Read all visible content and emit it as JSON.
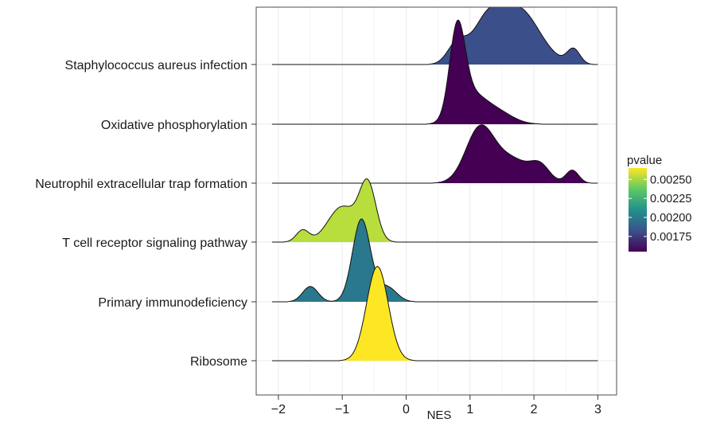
{
  "chart_data": {
    "type": "ridgeline",
    "xlabel": "NES",
    "ylabel": "",
    "xlim": [
      -2.1,
      3.0
    ],
    "x_ticks": [
      -2,
      -1,
      0,
      1,
      2,
      3
    ],
    "x_tick_labels": [
      "−2",
      "−1",
      "0",
      "1",
      "2",
      "3"
    ],
    "grid": true,
    "categories": [
      "Ribosome",
      "Primary immunodeficiency",
      "T cell receptor signaling pathway",
      "Neutrophil extracellular trap formation",
      "Oxidative phosphorylation",
      "Staphylococcus aureus infection"
    ],
    "series": [
      {
        "category": "Staphylococcus aureus infection",
        "pvalue": 0.00162,
        "color": "#3b4f8a",
        "peaks": [
          {
            "x": 0.8,
            "h": 0.35,
            "sd": 0.15
          },
          {
            "x": 1.25,
            "h": 0.6,
            "sd": 0.22
          },
          {
            "x": 1.75,
            "h": 0.95,
            "sd": 0.33
          },
          {
            "x": 2.62,
            "h": 0.25,
            "sd": 0.1
          }
        ]
      },
      {
        "category": "Oxidative phosphorylation",
        "pvalue": 0.00158,
        "color": "#440154",
        "peaks": [
          {
            "x": 0.8,
            "h": 1.45,
            "sd": 0.12
          },
          {
            "x": 1.0,
            "h": 0.45,
            "sd": 0.22
          },
          {
            "x": 1.4,
            "h": 0.22,
            "sd": 0.25
          }
        ]
      },
      {
        "category": "Neutrophil extracellular trap formation",
        "pvalue": 0.00158,
        "color": "#440154",
        "peaks": [
          {
            "x": 1.15,
            "h": 0.9,
            "sd": 0.22
          },
          {
            "x": 1.65,
            "h": 0.4,
            "sd": 0.28
          },
          {
            "x": 2.1,
            "h": 0.25,
            "sd": 0.15
          },
          {
            "x": 2.6,
            "h": 0.22,
            "sd": 0.1
          }
        ]
      },
      {
        "category": "T cell receptor signaling pathway",
        "pvalue": 0.00258,
        "color": "#b8de3d",
        "peaks": [
          {
            "x": -1.62,
            "h": 0.2,
            "sd": 0.1
          },
          {
            "x": -1.0,
            "h": 0.6,
            "sd": 0.22
          },
          {
            "x": -0.6,
            "h": 0.95,
            "sd": 0.13
          }
        ]
      },
      {
        "category": "Primary immunodeficiency",
        "pvalue": 0.00205,
        "color": "#2a788e",
        "peaks": [
          {
            "x": -1.5,
            "h": 0.26,
            "sd": 0.12
          },
          {
            "x": -0.7,
            "h": 1.4,
            "sd": 0.14
          },
          {
            "x": -0.3,
            "h": 0.25,
            "sd": 0.15
          }
        ]
      },
      {
        "category": "Ribosome",
        "pvalue": 0.00265,
        "color": "#fde725",
        "peaks": [
          {
            "x": -0.45,
            "h": 1.6,
            "sd": 0.17
          }
        ]
      }
    ],
    "legend": {
      "title": "pvalue",
      "position": "right",
      "ticks": [
        0.0025,
        0.00225,
        0.002,
        0.00175
      ],
      "tick_labels": [
        "0.00250",
        "0.00225",
        "0.00200",
        "0.00175"
      ],
      "range": [
        0.00155,
        0.00265
      ],
      "colors": [
        "#fde725",
        "#5ec962",
        "#21918c",
        "#3b528b",
        "#440154"
      ]
    }
  }
}
